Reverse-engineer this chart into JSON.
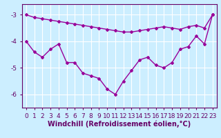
{
  "xlabel": "Windchill (Refroidissement éolien,°C)",
  "background_color": "#cceeff",
  "grid_color": "#ffffff",
  "line_color": "#990099",
  "x_hours": [
    0,
    1,
    2,
    3,
    4,
    5,
    6,
    7,
    8,
    9,
    10,
    11,
    12,
    13,
    14,
    15,
    16,
    17,
    18,
    19,
    20,
    21,
    22,
    23
  ],
  "line1": [
    -4.0,
    -4.4,
    -4.6,
    -4.3,
    -4.1,
    -4.8,
    -4.8,
    -5.2,
    -5.3,
    -5.4,
    -5.8,
    -6.0,
    -5.5,
    -5.1,
    -4.7,
    -4.6,
    -4.9,
    -5.0,
    -4.8,
    -4.3,
    -4.2,
    -3.8,
    -4.1,
    -3.0
  ],
  "line2": [
    -3.0,
    -3.1,
    -3.15,
    -3.2,
    -3.25,
    -3.3,
    -3.35,
    -3.4,
    -3.45,
    -3.5,
    -3.55,
    -3.6,
    -3.65,
    -3.65,
    -3.6,
    -3.55,
    -3.5,
    -3.45,
    -3.5,
    -3.55,
    -3.45,
    -3.4,
    -3.5,
    -3.0
  ],
  "ylim": [
    -6.5,
    -2.6
  ],
  "yticks": [
    -6,
    -5,
    -4,
    -3
  ],
  "xlim": [
    -0.5,
    23.5
  ],
  "marker": "D",
  "marker_size": 2,
  "line_width": 1.0,
  "xlabel_fontsize": 7,
  "tick_fontsize": 6.5
}
